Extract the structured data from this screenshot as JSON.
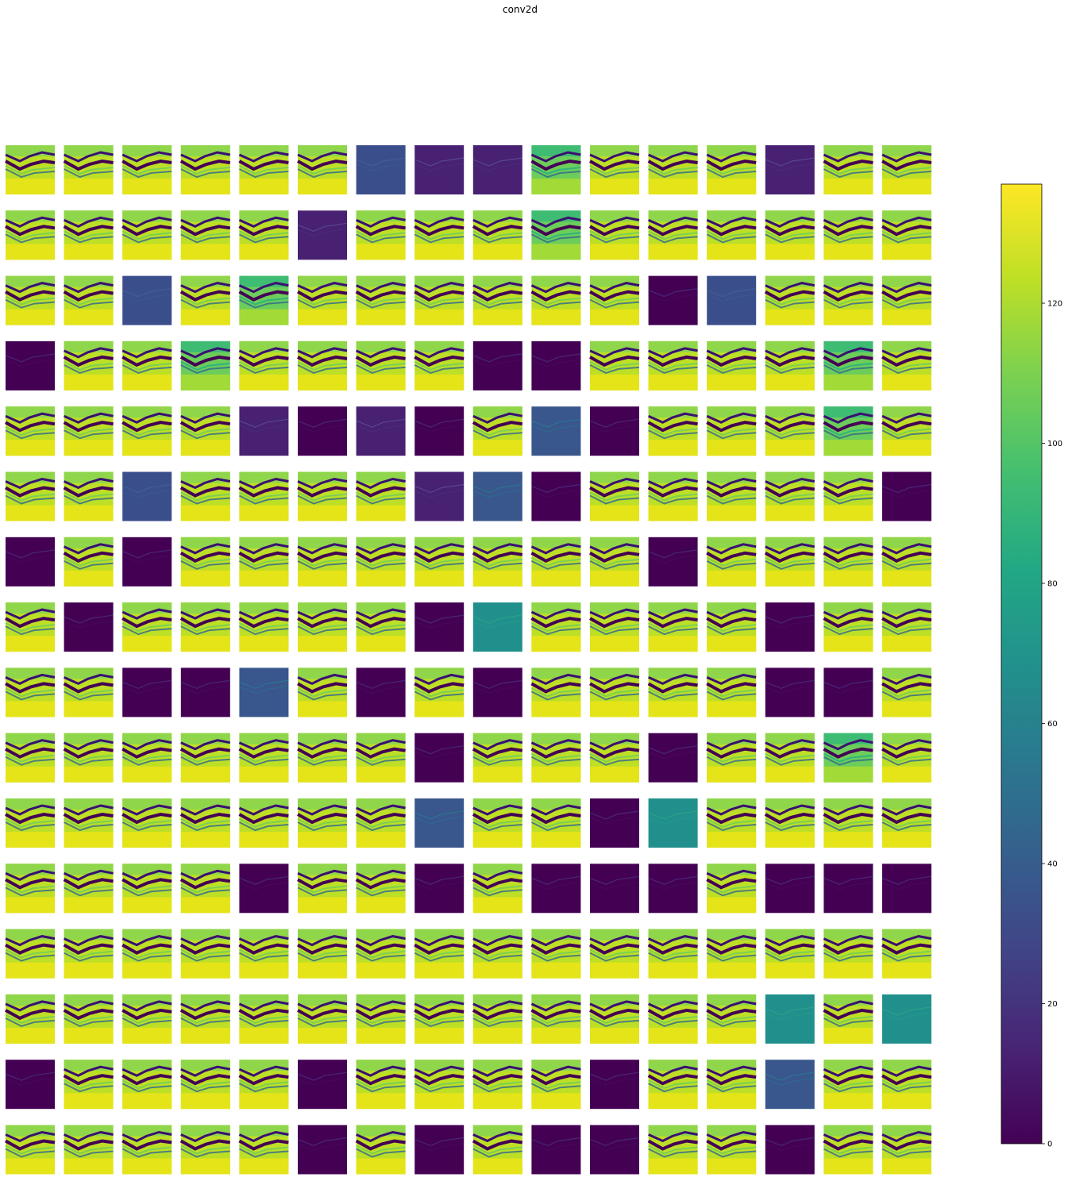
{
  "chart_data": {
    "type": "heatmap",
    "title": "conv2d",
    "grid": {
      "rows": 16,
      "cols": 16
    },
    "colormap": "viridis",
    "colorbar": {
      "min": 0,
      "max": 137,
      "ticks": [
        0,
        20,
        40,
        60,
        80,
        100,
        120
      ],
      "tick_labels": [
        "0",
        "20",
        "40",
        "60",
        "80",
        "100",
        "120"
      ],
      "placement": "right"
    },
    "feature_map_styles": [
      "1111113224111211",
      "1111121114111111",
      "1131411111103111",
      "0114111100111141",
      "1111202015011141",
      "1131111250111110",
      "0101111111101111",
      "1011111061111011",
      "1100510101111001",
      "1111111011101141",
      "1111111511061111",
      "1111011010001000",
      "1111111111111111",
      "1111111111111616",
      "0111101111011511",
      "1111101010011011"
    ],
    "feature_map_styles_legend": {
      "0": "uniformly dark (near 0) with faint edge traces",
      "1": "bright retina-like activation (yellow/green layers)",
      "2": "dark purple with vertical texture",
      "3": "dark blue-purple",
      "4": "mid-level teal/green",
      "5": "mid-level blue/teal",
      "6": "mid-level teal"
    }
  }
}
